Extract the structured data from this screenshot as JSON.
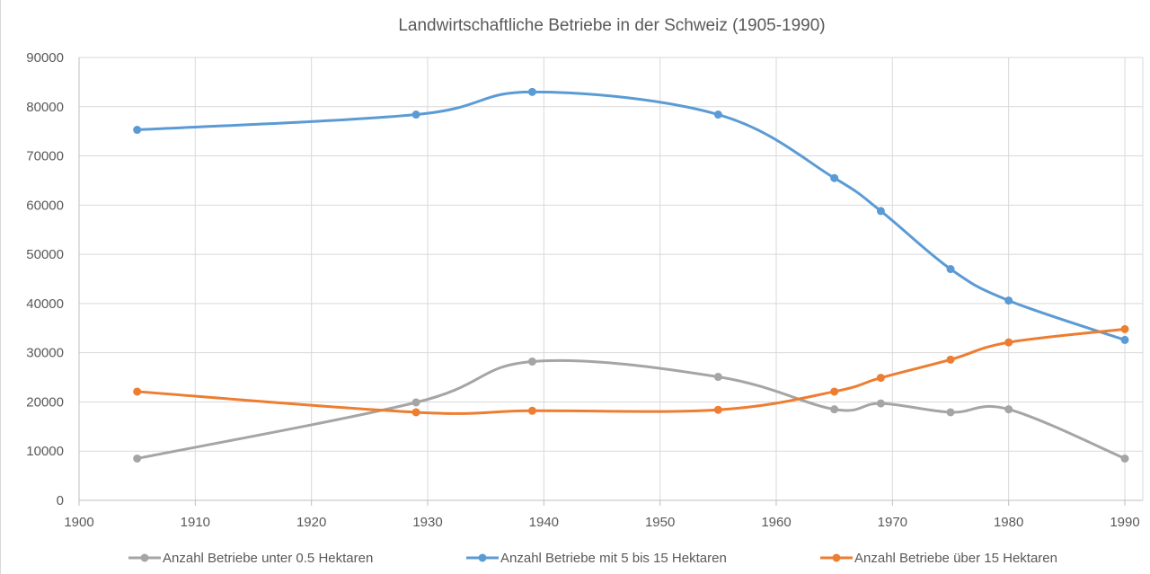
{
  "chart_data": {
    "type": "line",
    "title": "Landwirtschaftliche Betriebe in der Schweiz (1905-1990)",
    "xlabel": "",
    "ylabel": "",
    "xlim": [
      1900,
      1990
    ],
    "ylim": [
      0,
      90000
    ],
    "x_ticks": [
      "1900",
      "1910",
      "1920",
      "1930",
      "1940",
      "1950",
      "1960",
      "1970",
      "1980",
      "1990"
    ],
    "y_ticks": [
      "0",
      "10000",
      "20000",
      "30000",
      "40000",
      "50000",
      "60000",
      "70000",
      "80000",
      "90000"
    ],
    "grid": true,
    "smooth": true,
    "legend_position": "bottom",
    "series": [
      {
        "name": "Anzahl Betriebe unter 0.5 Hektaren",
        "color": "#a5a5a5",
        "x": [
          1905,
          1929,
          1939,
          1955,
          1965,
          1969,
          1975,
          1980,
          1990
        ],
        "values": [
          8500,
          19900,
          28200,
          25100,
          18500,
          19700,
          17900,
          18500,
          8500
        ]
      },
      {
        "name": "Anzahl Betriebe mit 5 bis 15 Hektaren",
        "color": "#5b9bd5",
        "x": [
          1905,
          1929,
          1939,
          1955,
          1965,
          1969,
          1975,
          1980,
          1990
        ],
        "values": [
          75300,
          78400,
          83000,
          78400,
          65500,
          58800,
          47000,
          40600,
          32600
        ]
      },
      {
        "name": "Anzahl Betriebe über 15 Hektaren",
        "color": "#ed7d31",
        "x": [
          1905,
          1929,
          1939,
          1955,
          1965,
          1969,
          1975,
          1980,
          1990
        ],
        "values": [
          22100,
          17900,
          18200,
          18400,
          22100,
          24900,
          28600,
          32100,
          34800
        ]
      }
    ]
  }
}
